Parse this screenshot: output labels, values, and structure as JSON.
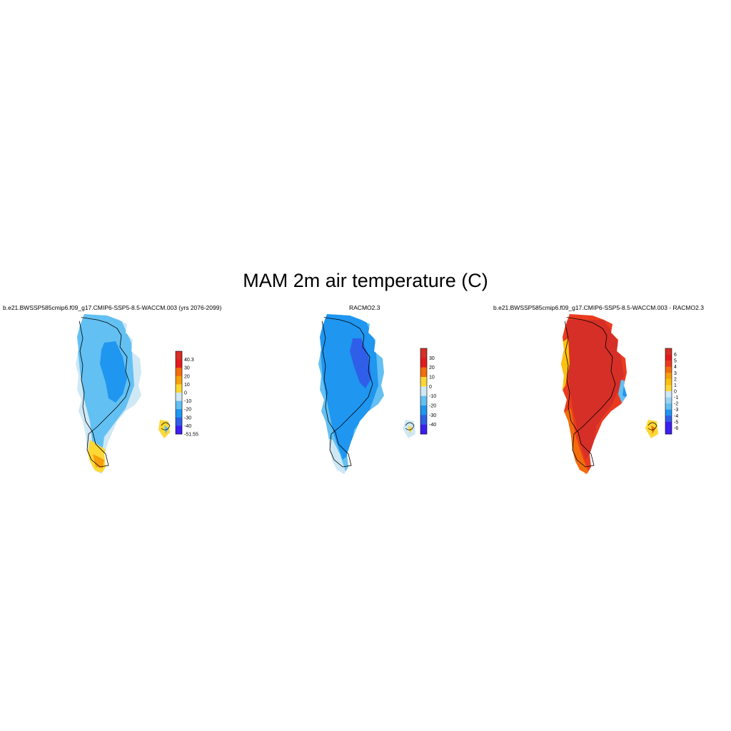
{
  "figure": {
    "title": "MAM 2m air temperature (C)"
  },
  "panels": [
    {
      "title": "b.e21.BWSSP585cmip6.f09_g17.CMIP6-SSP5-8.5-WACCM.003 (yrs 2076-2099)",
      "colorbar": {
        "labels": [
          "40.3",
          "30",
          "20",
          "10",
          "0",
          "-10",
          "-20",
          "-30",
          "-40",
          "-51.55"
        ],
        "colors": [
          "#d62f27",
          "#e31a1c",
          "#f26d0b",
          "#f79f0c",
          "#fdd835",
          "#cfe8f5",
          "#63c0f2",
          "#1f96f0",
          "#2f5fe8",
          "#3b1ff0"
        ]
      },
      "dominant_class": "-20 to -10",
      "interior_class": "-30 to -20",
      "margin_class": "-10 to 0",
      "coast_class": "0 to 10"
    },
    {
      "title": "RACMO2.3",
      "colorbar": {
        "labels": [
          "30",
          "20",
          "10",
          "0",
          "-10",
          "-20",
          "-30",
          "-40"
        ],
        "colors": [
          "#d62f27",
          "#e31a1c",
          "#f26d0b",
          "#fdd835",
          "#cfe8f5",
          "#63c0f2",
          "#1f96f0",
          "#2f5fe8",
          "#3b1ff0"
        ]
      },
      "dominant_class": "-30 to -20",
      "interior_class": "-40 to -30",
      "margin_class": "-10 to 0"
    },
    {
      "title": "b.e21.BWSSP585cmip6.f09_g17.CMIP6-SSP5-8.5-WACCM.003 - RACMO2.3",
      "colorbar": {
        "labels": [
          "6",
          "5",
          "4",
          "3",
          "2",
          "1",
          "0",
          "-1",
          "-2",
          "-3",
          "-4",
          "-5",
          "-6"
        ],
        "colors": [
          "#d62f27",
          "#e31a1c",
          "#ea3b1f",
          "#f26d0b",
          "#f79f0c",
          "#fcc10f",
          "#fdd835",
          "#cfe8f5",
          "#9ad4f5",
          "#63c0f2",
          "#1f96f0",
          "#2f5fe8",
          "#3b1ff0",
          "#3b1ff0"
        ]
      },
      "dominant_class": "> 6",
      "margin_class": "1 to 5",
      "anomaly_class": "-6 to 0"
    }
  ]
}
